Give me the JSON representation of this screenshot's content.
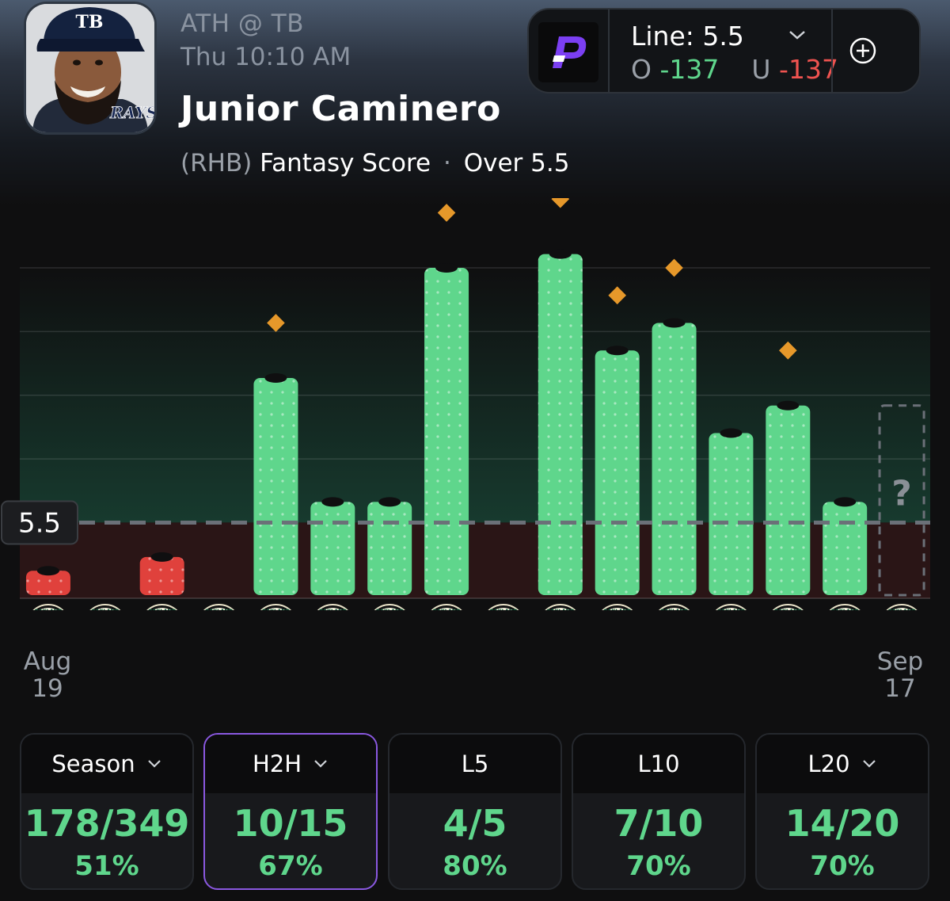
{
  "header": {
    "matchup": "ATH @ TB",
    "game_time": "Thu 10:10 AM",
    "player_name": "Junior Caminero",
    "batter_hand": "(RHB)",
    "stat": "Fantasy Score",
    "separator": "·",
    "pick": "Over 5.5",
    "cap_logo_text": "TB",
    "team_logo_text": "RAYS"
  },
  "line_box": {
    "line_label": "Line: 5.5",
    "over_label": "O",
    "over_odds": "-137",
    "under_label": "U",
    "under_odds": "-137",
    "colors": {
      "over": "#5fd68c",
      "under": "#ef5350",
      "prizepicks": "#7b3ff2"
    }
  },
  "chart_data": {
    "type": "bar",
    "line_value": 5.5,
    "line_label": "5.5",
    "ylim": [
      0,
      24
    ],
    "values": [
      2,
      0,
      3,
      0,
      16,
      7,
      7,
      24,
      0,
      25,
      18,
      20,
      12,
      14,
      7,
      null
    ],
    "projection_markers": [
      null,
      null,
      null,
      null,
      20,
      null,
      null,
      28,
      null,
      29,
      22,
      24,
      null,
      18,
      null,
      null
    ],
    "opponent_logo_top": "OAKLAND",
    "opponent_logo_mid": "A's",
    "opponent_logo_bottom": "ATHLETICS",
    "pending_label": "?",
    "x_start": {
      "month": "Aug",
      "day": "19"
    },
    "x_end": {
      "month": "Sep",
      "day": "17"
    },
    "colors": {
      "hit": "#5fd68c",
      "miss": "#e0413c",
      "marker": "#e6982a"
    }
  },
  "tiles": [
    {
      "label": "Season",
      "fraction": "178/349",
      "percent": "51%",
      "dropdown": true,
      "active": false
    },
    {
      "label": "H2H",
      "fraction": "10/15",
      "percent": "67%",
      "dropdown": true,
      "active": true
    },
    {
      "label": "L5",
      "fraction": "4/5",
      "percent": "80%",
      "dropdown": false,
      "active": false
    },
    {
      "label": "L10",
      "fraction": "7/10",
      "percent": "70%",
      "dropdown": false,
      "active": false
    },
    {
      "label": "L20",
      "fraction": "14/20",
      "percent": "70%",
      "dropdown": true,
      "active": false
    }
  ]
}
